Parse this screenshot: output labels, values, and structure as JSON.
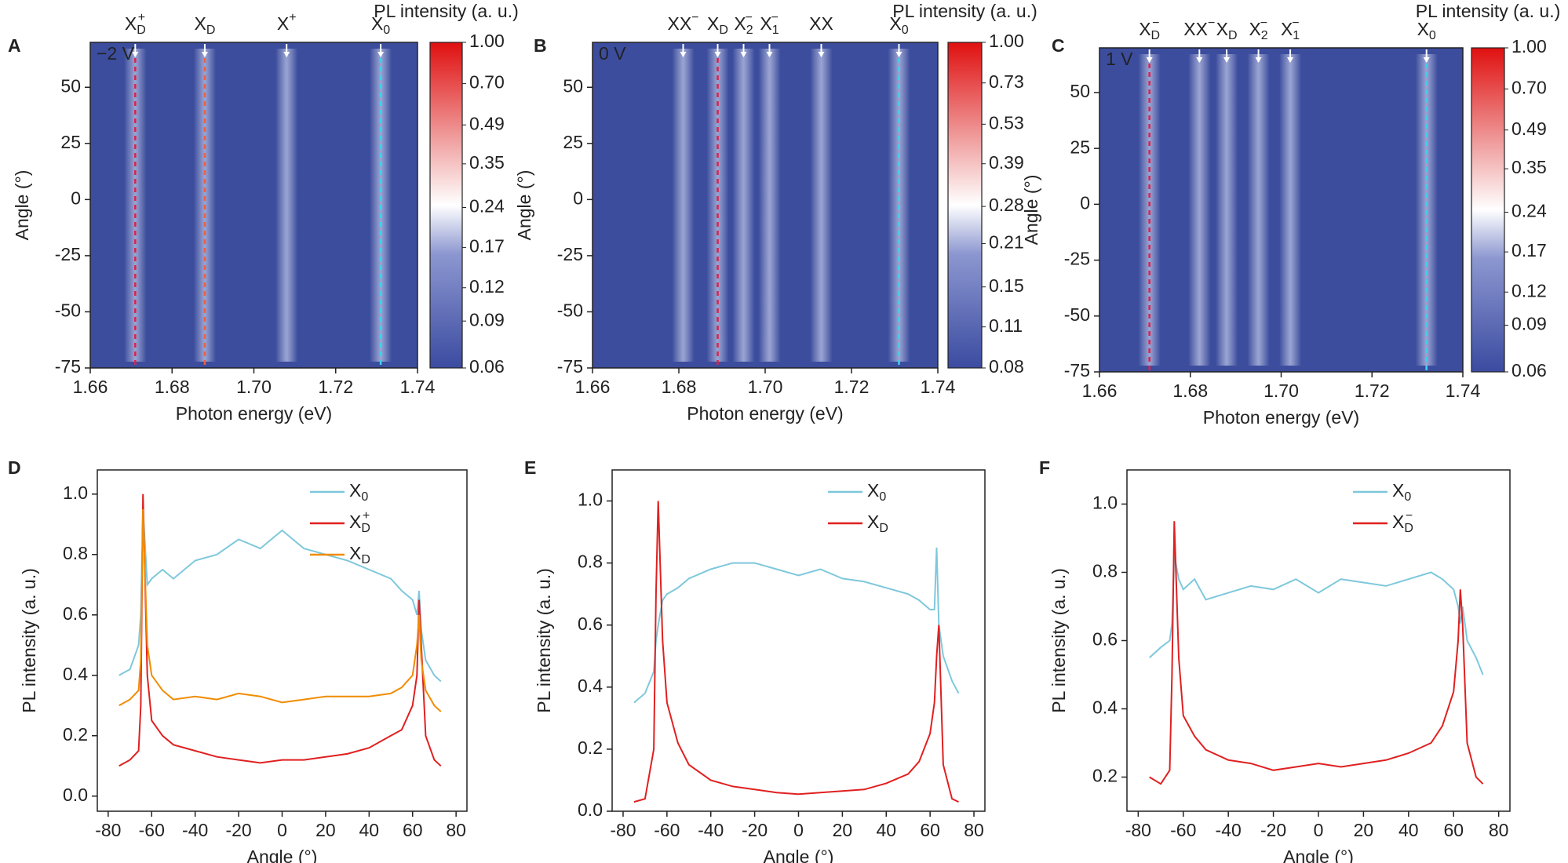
{
  "chart_data": [
    {
      "type": "heatmap",
      "panel": "A",
      "bias": "−2 V",
      "xlabel": "Photon energy (eV)",
      "ylabel": "Angle (°)",
      "xlim": [
        1.66,
        1.74
      ],
      "xticks": [
        1.66,
        1.68,
        {
          "value": 1.7,
          "label": "1.70"
        },
        1.72,
        1.74
      ],
      "ylim": [
        -75,
        70
      ],
      "yticks": [
        -75,
        -50,
        -25,
        0,
        25,
        50
      ],
      "colorbar_label": "PL intensity (a. u.)",
      "colorbar_scale": "log",
      "clim": [
        0.06,
        1
      ],
      "colorbar_ticks": [
        {
          "value": 1,
          "label": "1.00"
        },
        {
          "value": 0.7,
          "label": "0.70"
        },
        0.49,
        0.35,
        0.24,
        0.17,
        0.12,
        0.09,
        0.06
      ],
      "peaks": [
        {
          "label": {
            "text": "X",
            "sub": "D",
            "sup": "+"
          },
          "energy": 1.671,
          "color": "#e0204a"
        },
        {
          "label": {
            "text": "X",
            "sub": "D"
          },
          "energy": 1.688,
          "color": "#f06040"
        },
        {
          "label": {
            "text": "X",
            "sup": "+"
          },
          "energy": 1.708
        },
        {
          "label": {
            "text": "X",
            "sub": "0"
          },
          "energy": 1.731,
          "color": "#40d0f0"
        }
      ]
    },
    {
      "type": "heatmap",
      "panel": "B",
      "bias": "0 V",
      "xlabel": "Photon energy (eV)",
      "ylabel": "Angle (°)",
      "xlim": [
        1.66,
        1.74
      ],
      "xticks": [
        1.66,
        1.68,
        {
          "value": 1.7,
          "label": "1.70"
        },
        1.72,
        1.74
      ],
      "ylim": [
        -75,
        70
      ],
      "yticks": [
        -75,
        -50,
        -25,
        0,
        25,
        50
      ],
      "colorbar_label": "PL intensity (a. u.)",
      "colorbar_scale": "log",
      "clim": [
        0.08,
        1
      ],
      "colorbar_ticks": [
        {
          "value": 1,
          "label": "1.00"
        },
        0.73,
        0.53,
        0.39,
        0.28,
        0.21,
        0.15,
        0.11,
        0.08
      ],
      "peaks": [
        {
          "label": {
            "text": "XX",
            "sup": "−"
          },
          "energy": 1.681
        },
        {
          "label": {
            "text": "X",
            "sub": "D"
          },
          "energy": 1.689,
          "color": "#e0204a"
        },
        {
          "label": {
            "text": "X",
            "sub": "2",
            "sup": "−"
          },
          "energy": 1.695
        },
        {
          "label": {
            "text": "X",
            "sub": "1",
            "sup": "−"
          },
          "energy": 1.701
        },
        {
          "label": {
            "text": "XX"
          },
          "energy": 1.713
        },
        {
          "label": {
            "text": "X",
            "sub": "0"
          },
          "energy": 1.731,
          "color": "#40d0f0"
        }
      ]
    },
    {
      "type": "heatmap",
      "panel": "C",
      "bias": "1 V",
      "xlabel": "Photon energy (eV)",
      "ylabel": "Angle (°)",
      "xlim": [
        1.66,
        1.74
      ],
      "xticks": [
        1.66,
        1.68,
        {
          "value": 1.7,
          "label": "1.70"
        },
        1.72,
        1.74
      ],
      "ylim": [
        -75,
        70
      ],
      "yticks": [
        -75,
        -50,
        -25,
        0,
        25,
        50
      ],
      "colorbar_label": "PL intensity (a. u.)",
      "colorbar_scale": "log",
      "clim": [
        0.06,
        1
      ],
      "colorbar_ticks": [
        {
          "value": 1,
          "label": "1.00"
        },
        {
          "value": 0.7,
          "label": "0.70"
        },
        0.49,
        0.35,
        0.24,
        0.17,
        0.12,
        0.09,
        0.06
      ],
      "peaks": [
        {
          "label": {
            "text": "X",
            "sub": "D",
            "sup": "−"
          },
          "energy": 1.671,
          "color": "#e0204a"
        },
        {
          "label": {
            "text": "XX",
            "sup": "−"
          },
          "energy": 1.682
        },
        {
          "label": {
            "text": "X",
            "sub": "D"
          },
          "energy": 1.688
        },
        {
          "label": {
            "text": "X",
            "sub": "2",
            "sup": "−"
          },
          "energy": 1.695
        },
        {
          "label": {
            "text": "X",
            "sub": "1",
            "sup": "−"
          },
          "energy": 1.702
        },
        {
          "label": {
            "text": "X",
            "sub": "0"
          },
          "energy": 1.732,
          "color": "#40d0f0"
        }
      ]
    },
    {
      "type": "line",
      "panel": "D",
      "xlabel": "Angle (°)",
      "ylabel": "PL intensity (a. u.)",
      "legend": "upper right",
      "xlim": [
        -85,
        85
      ],
      "xticks": [
        -80,
        -60,
        -40,
        -20,
        0,
        20,
        40,
        60,
        80
      ],
      "ylim": [
        -0.05,
        1.08
      ],
      "yticks": [
        {
          "value": 0,
          "label": "0.0"
        },
        0.2,
        0.4,
        0.6,
        0.8,
        {
          "value": 1,
          "label": "1.0"
        }
      ],
      "x": [
        -75,
        -70,
        -66,
        -65,
        -64,
        -62,
        -60,
        -55,
        -50,
        -40,
        -30,
        -20,
        -10,
        0,
        10,
        20,
        30,
        40,
        50,
        55,
        60,
        62,
        63,
        64,
        66,
        70,
        73
      ],
      "series": [
        {
          "name": "X",
          "name_sub": "0",
          "color": "#7ec8dc",
          "values": [
            0.4,
            0.42,
            0.5,
            0.6,
            0.95,
            0.7,
            0.72,
            0.75,
            0.72,
            0.78,
            0.8,
            0.85,
            0.82,
            0.88,
            0.82,
            0.8,
            0.78,
            0.75,
            0.72,
            0.68,
            0.65,
            0.6,
            0.68,
            0.55,
            0.45,
            0.4,
            0.38
          ]
        },
        {
          "name": "X",
          "name_sub": "D",
          "name_sup": "+",
          "color": "#e02020",
          "values": [
            0.1,
            0.12,
            0.15,
            0.3,
            1.0,
            0.4,
            0.25,
            0.2,
            0.17,
            0.15,
            0.13,
            0.12,
            0.11,
            0.12,
            0.12,
            0.13,
            0.14,
            0.16,
            0.2,
            0.22,
            0.3,
            0.4,
            0.65,
            0.5,
            0.2,
            0.12,
            0.1
          ]
        },
        {
          "name": "X",
          "name_sub": "D",
          "color": "#f08c00",
          "values": [
            0.3,
            0.32,
            0.35,
            0.45,
            0.95,
            0.5,
            0.4,
            0.35,
            0.32,
            0.33,
            0.32,
            0.34,
            0.33,
            0.31,
            0.32,
            0.33,
            0.33,
            0.33,
            0.34,
            0.36,
            0.4,
            0.5,
            0.6,
            0.45,
            0.35,
            0.3,
            0.28
          ]
        }
      ]
    },
    {
      "type": "line",
      "panel": "E",
      "xlabel": "Angle (°)",
      "ylabel": "PL intensity (a. u.)",
      "legend": "upper right",
      "xlim": [
        -85,
        85
      ],
      "xticks": [
        -80,
        -60,
        -40,
        -20,
        0,
        20,
        40,
        60,
        80
      ],
      "ylim": [
        0,
        1.1
      ],
      "yticks": [
        {
          "value": 0,
          "label": "0.0"
        },
        0.2,
        0.4,
        0.6,
        0.8,
        {
          "value": 1,
          "label": "1.0"
        }
      ],
      "x": [
        -75,
        -70,
        -66,
        -65,
        -64,
        -62,
        -60,
        -55,
        -50,
        -40,
        -30,
        -20,
        -10,
        0,
        10,
        20,
        30,
        40,
        50,
        55,
        60,
        62,
        63,
        64,
        66,
        70,
        73
      ],
      "series": [
        {
          "name": "X",
          "name_sub": "0",
          "color": "#7ec8dc",
          "values": [
            0.35,
            0.38,
            0.45,
            0.55,
            0.6,
            0.68,
            0.7,
            0.72,
            0.75,
            0.78,
            0.8,
            0.8,
            0.78,
            0.76,
            0.78,
            0.75,
            0.74,
            0.72,
            0.7,
            0.68,
            0.65,
            0.65,
            0.85,
            0.6,
            0.5,
            0.42,
            0.38
          ]
        },
        {
          "name": "X",
          "name_sub": "D",
          "color": "#e02020",
          "values": [
            0.03,
            0.04,
            0.2,
            0.7,
            1.0,
            0.55,
            0.35,
            0.22,
            0.15,
            0.1,
            0.08,
            0.07,
            0.06,
            0.055,
            0.06,
            0.065,
            0.07,
            0.09,
            0.12,
            0.16,
            0.25,
            0.35,
            0.5,
            0.6,
            0.15,
            0.04,
            0.03
          ]
        }
      ]
    },
    {
      "type": "line",
      "panel": "F",
      "xlabel": "Angle (°)",
      "ylabel": "PL intensity (a. u.)",
      "legend": "upper right",
      "xlim": [
        -85,
        85
      ],
      "xticks": [
        -80,
        -60,
        -40,
        -20,
        0,
        20,
        40,
        60,
        80
      ],
      "ylim": [
        0.1,
        1.1
      ],
      "yticks": [
        0.2,
        0.4,
        0.6,
        0.8,
        {
          "value": 1,
          "label": "1.0"
        }
      ],
      "x": [
        -75,
        -70,
        -66,
        -65,
        -64,
        -62,
        -60,
        -55,
        -50,
        -40,
        -30,
        -20,
        -10,
        0,
        10,
        20,
        30,
        40,
        50,
        55,
        60,
        62,
        63,
        64,
        66,
        70,
        73
      ],
      "series": [
        {
          "name": "X",
          "name_sub": "0",
          "color": "#7ec8dc",
          "values": [
            0.55,
            0.58,
            0.6,
            0.65,
            0.85,
            0.78,
            0.75,
            0.78,
            0.72,
            0.74,
            0.76,
            0.75,
            0.78,
            0.74,
            0.78,
            0.77,
            0.76,
            0.78,
            0.8,
            0.78,
            0.75,
            0.7,
            0.65,
            0.7,
            0.6,
            0.55,
            0.5
          ]
        },
        {
          "name": "X",
          "name_sub": "D",
          "name_sup": "−",
          "color": "#e02020",
          "values": [
            0.2,
            0.18,
            0.22,
            0.5,
            0.95,
            0.55,
            0.38,
            0.32,
            0.28,
            0.25,
            0.24,
            0.22,
            0.23,
            0.24,
            0.23,
            0.24,
            0.25,
            0.27,
            0.3,
            0.35,
            0.45,
            0.6,
            0.75,
            0.65,
            0.3,
            0.2,
            0.18
          ]
        }
      ]
    }
  ]
}
